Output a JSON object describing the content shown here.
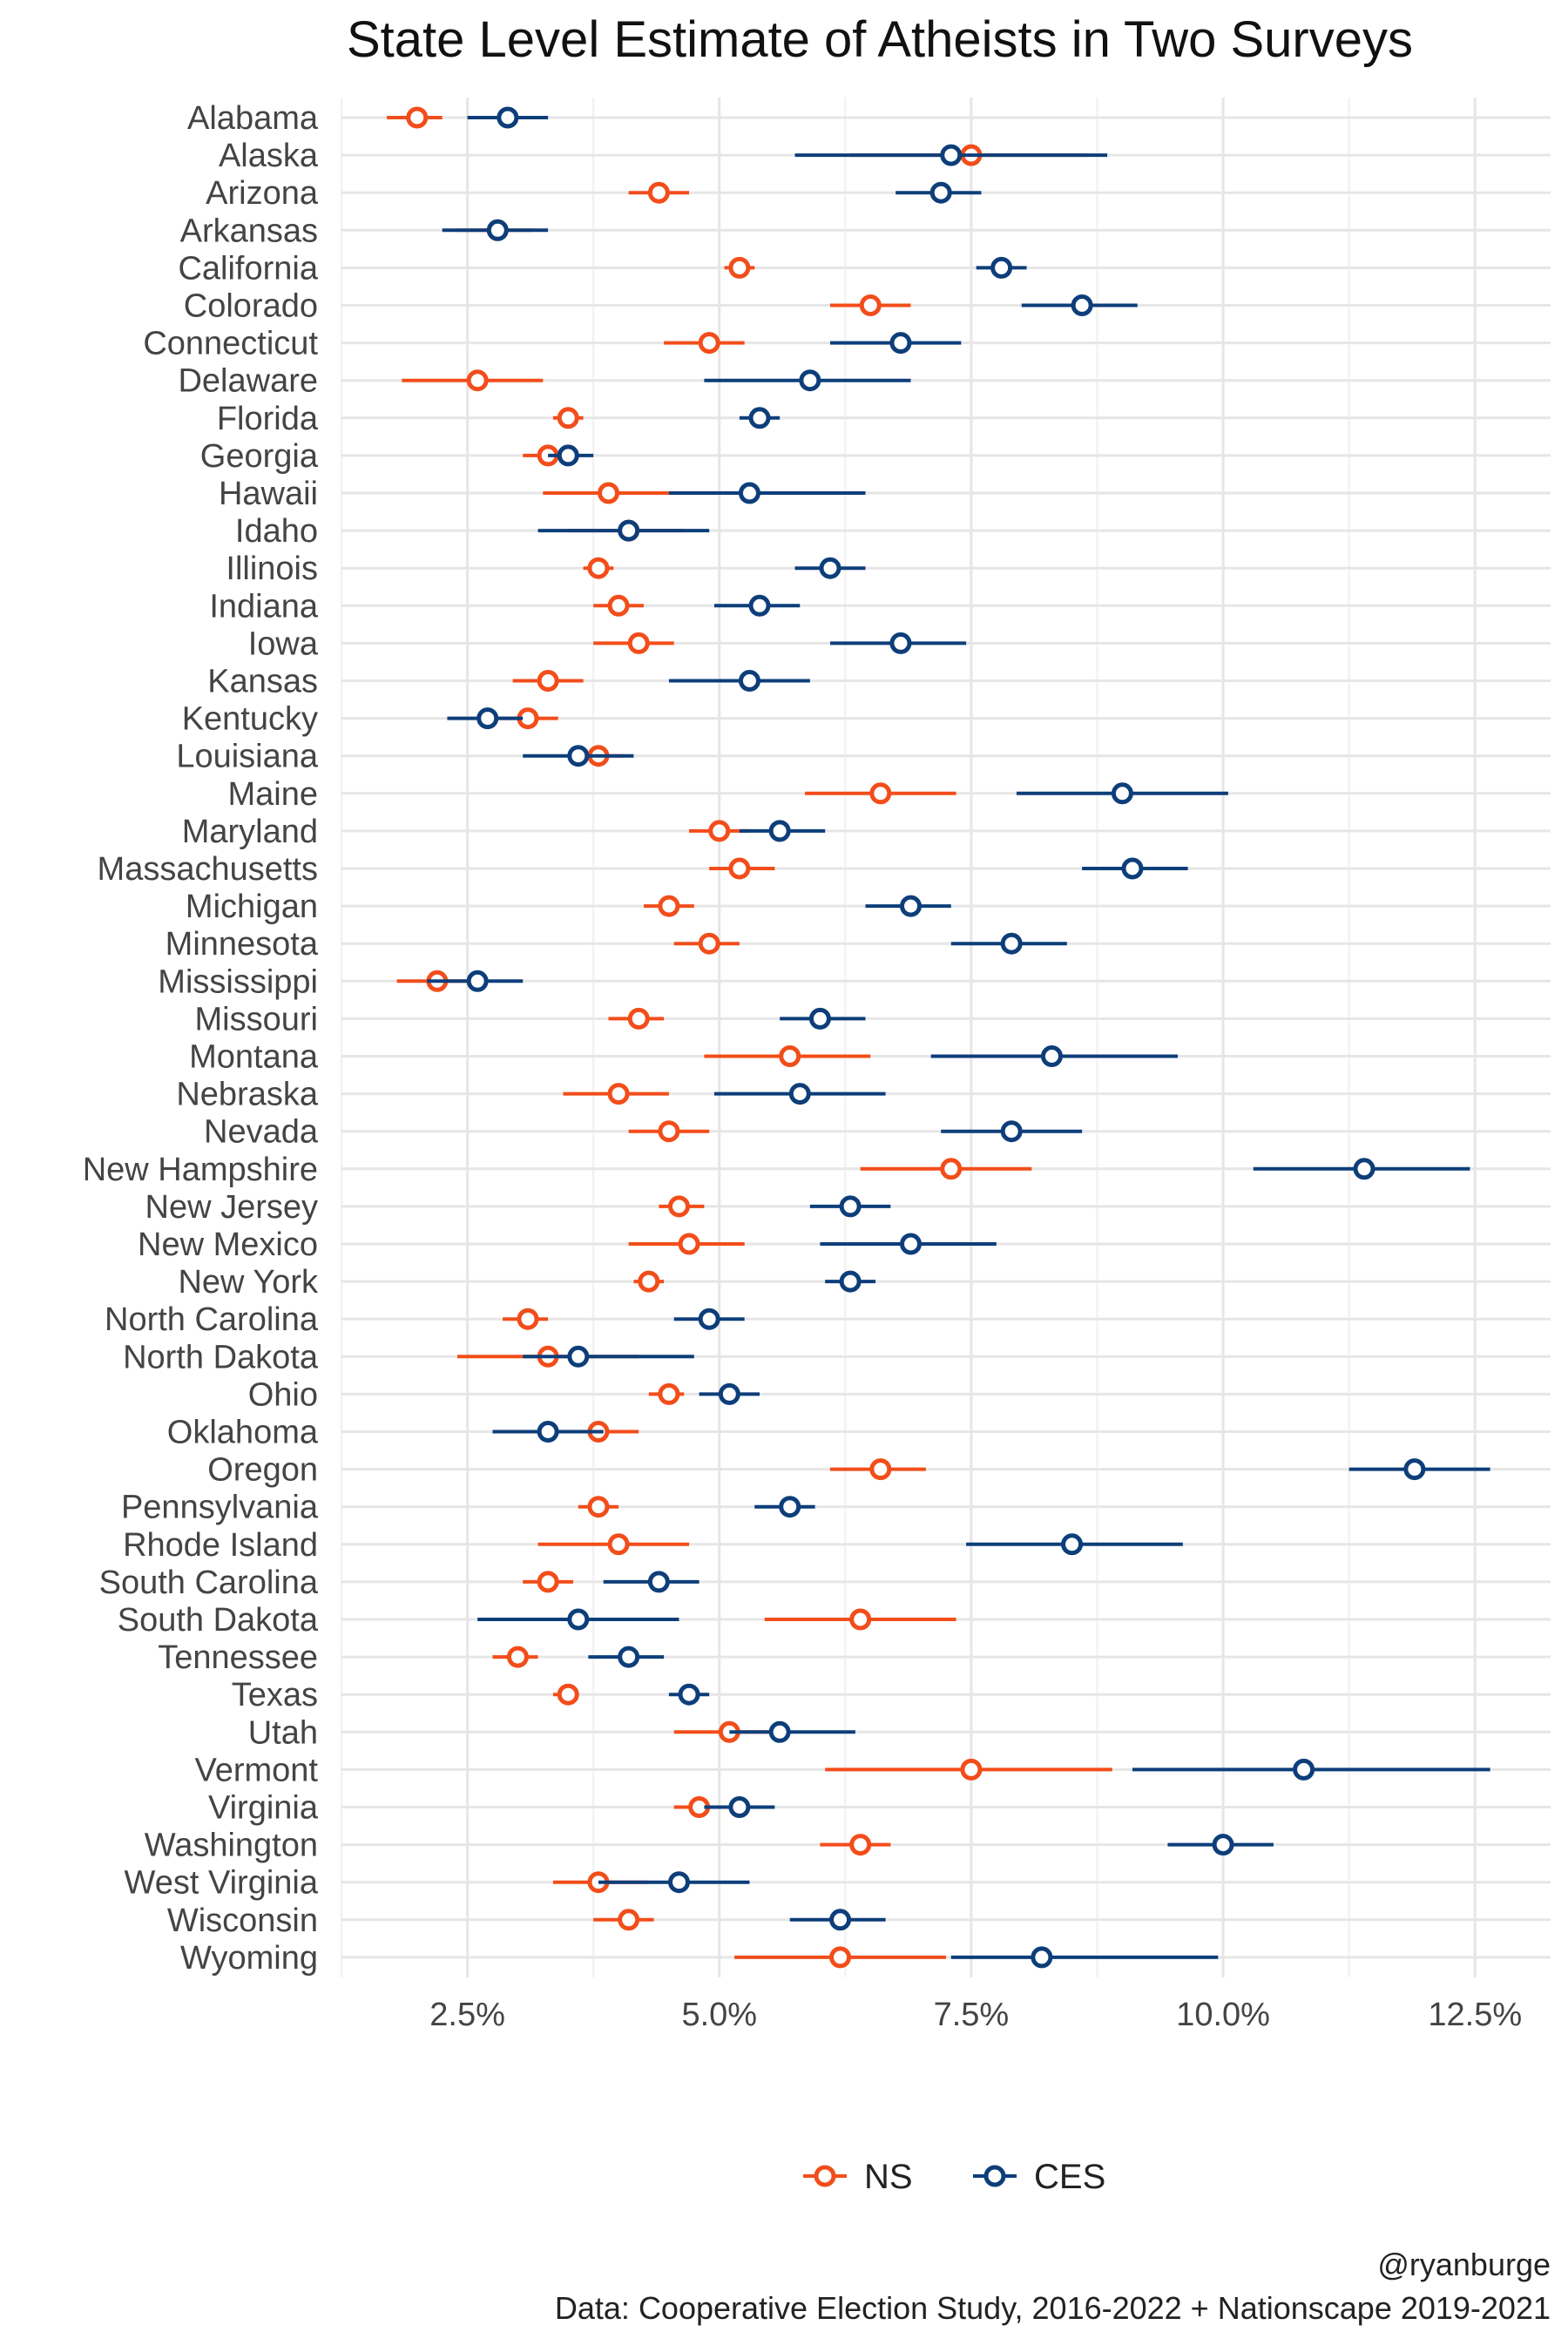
{
  "chart_data": {
    "type": "scatter",
    "title": "State Level Estimate of Atheists in Two Surveys",
    "xlabel": "",
    "ylabel": "",
    "xlim": [
      1.25,
      13.25
    ],
    "x_ticks": [
      2.5,
      5.0,
      7.5,
      10.0,
      12.5
    ],
    "x_tick_labels": [
      "2.5%",
      "5.0%",
      "7.5%",
      "10.0%",
      "12.5%"
    ],
    "grid": true,
    "legend_position": "bottom",
    "categories": [
      "Alabama",
      "Alaska",
      "Arizona",
      "Arkansas",
      "California",
      "Colorado",
      "Connecticut",
      "Delaware",
      "Florida",
      "Georgia",
      "Hawaii",
      "Idaho",
      "Illinois",
      "Indiana",
      "Iowa",
      "Kansas",
      "Kentucky",
      "Louisiana",
      "Maine",
      "Maryland",
      "Massachusetts",
      "Michigan",
      "Minnesota",
      "Mississippi",
      "Missouri",
      "Montana",
      "Nebraska",
      "Nevada",
      "New Hampshire",
      "New Jersey",
      "New Mexico",
      "New York",
      "North Carolina",
      "North Dakota",
      "Ohio",
      "Oklahoma",
      "Oregon",
      "Pennsylvania",
      "Rhode Island",
      "South Carolina",
      "South Dakota",
      "Tennessee",
      "Texas",
      "Utah",
      "Vermont",
      "Virginia",
      "Washington",
      "West Virginia",
      "Wisconsin",
      "Wyoming"
    ],
    "series": [
      {
        "name": "NS",
        "color": "#f24d1a",
        "values": [
          2.0,
          7.5,
          4.4,
          2.8,
          5.2,
          6.5,
          4.9,
          2.6,
          3.5,
          3.3,
          3.9,
          4.1,
          3.8,
          4.0,
          4.2,
          3.3,
          3.1,
          3.8,
          6.6,
          5.0,
          5.2,
          4.5,
          4.9,
          2.2,
          4.2,
          5.7,
          4.0,
          4.5,
          7.3,
          4.6,
          4.7,
          4.3,
          3.1,
          3.3,
          4.5,
          3.8,
          6.6,
          3.8,
          4.0,
          3.3,
          6.4,
          3.0,
          3.5,
          5.1,
          7.5,
          4.8,
          6.4,
          3.8,
          4.1,
          6.2
        ],
        "lower": [
          1.7,
          6.3,
          4.1,
          2.4,
          5.05,
          6.1,
          4.45,
          1.85,
          3.35,
          3.05,
          3.25,
          3.5,
          3.65,
          3.75,
          3.75,
          2.95,
          2.8,
          3.55,
          5.85,
          4.7,
          4.9,
          4.25,
          4.55,
          1.8,
          3.9,
          4.85,
          3.45,
          4.1,
          6.4,
          4.4,
          4.1,
          4.15,
          2.85,
          2.4,
          4.3,
          3.3,
          6.1,
          3.6,
          3.2,
          3.05,
          5.45,
          2.75,
          3.35,
          4.55,
          6.05,
          4.55,
          6.0,
          3.35,
          3.75,
          5.15
        ],
        "upper": [
          2.25,
          8.65,
          4.7,
          3.15,
          5.35,
          6.9,
          5.25,
          3.25,
          3.65,
          3.5,
          4.55,
          4.65,
          3.95,
          4.25,
          4.55,
          3.65,
          3.4,
          4.05,
          7.35,
          5.3,
          5.55,
          4.75,
          5.2,
          2.55,
          4.45,
          6.5,
          4.5,
          4.9,
          8.1,
          4.85,
          5.25,
          4.45,
          3.3,
          4.2,
          4.65,
          4.2,
          7.05,
          4.0,
          4.7,
          3.55,
          7.35,
          3.2,
          3.6,
          5.6,
          8.9,
          5.0,
          6.7,
          4.3,
          4.35,
          7.25
        ]
      },
      {
        "name": "CES",
        "color": "#0d3e7a",
        "values": [
          2.9,
          7.3,
          7.2,
          2.8,
          7.8,
          8.6,
          6.8,
          5.9,
          5.4,
          3.5,
          5.3,
          4.1,
          6.1,
          5.4,
          6.8,
          5.3,
          2.7,
          3.6,
          9.0,
          5.6,
          9.1,
          6.9,
          7.9,
          2.6,
          6.0,
          8.3,
          5.8,
          7.9,
          11.4,
          6.3,
          6.9,
          6.3,
          4.9,
          3.6,
          5.1,
          3.3,
          11.9,
          5.7,
          8.5,
          4.4,
          3.6,
          4.1,
          4.7,
          5.6,
          10.8,
          5.2,
          10.0,
          4.6,
          6.2,
          8.2
        ],
        "lower": [
          2.5,
          5.75,
          6.75,
          2.25,
          7.55,
          8.0,
          6.1,
          4.85,
          5.2,
          3.3,
          4.5,
          3.2,
          5.75,
          4.95,
          6.1,
          4.5,
          2.3,
          3.05,
          7.95,
          5.2,
          8.6,
          6.45,
          7.3,
          2.1,
          5.6,
          7.1,
          4.95,
          7.2,
          10.3,
          5.9,
          6.0,
          6.05,
          4.55,
          3.05,
          4.8,
          2.75,
          11.25,
          5.35,
          7.45,
          3.85,
          2.6,
          3.7,
          4.5,
          5.1,
          9.1,
          4.85,
          9.45,
          3.8,
          5.7,
          7.3
        ],
        "upper": [
          3.3,
          8.85,
          7.6,
          3.3,
          8.05,
          9.15,
          7.4,
          6.9,
          5.6,
          3.75,
          6.45,
          4.9,
          6.45,
          5.8,
          7.45,
          5.9,
          3.05,
          4.15,
          10.05,
          6.05,
          9.65,
          7.3,
          8.45,
          3.05,
          6.45,
          9.55,
          6.65,
          8.6,
          12.45,
          6.7,
          7.75,
          6.55,
          5.25,
          4.75,
          5.4,
          3.85,
          12.65,
          5.95,
          9.6,
          4.8,
          4.6,
          4.45,
          4.9,
          6.35,
          12.65,
          5.55,
          10.5,
          5.3,
          6.65,
          9.95
        ]
      }
    ],
    "caption_lines": [
      "@ryanburge",
      "Data: Cooperative Election Study, 2016-2022 + Nationscape 2019-2021"
    ]
  }
}
